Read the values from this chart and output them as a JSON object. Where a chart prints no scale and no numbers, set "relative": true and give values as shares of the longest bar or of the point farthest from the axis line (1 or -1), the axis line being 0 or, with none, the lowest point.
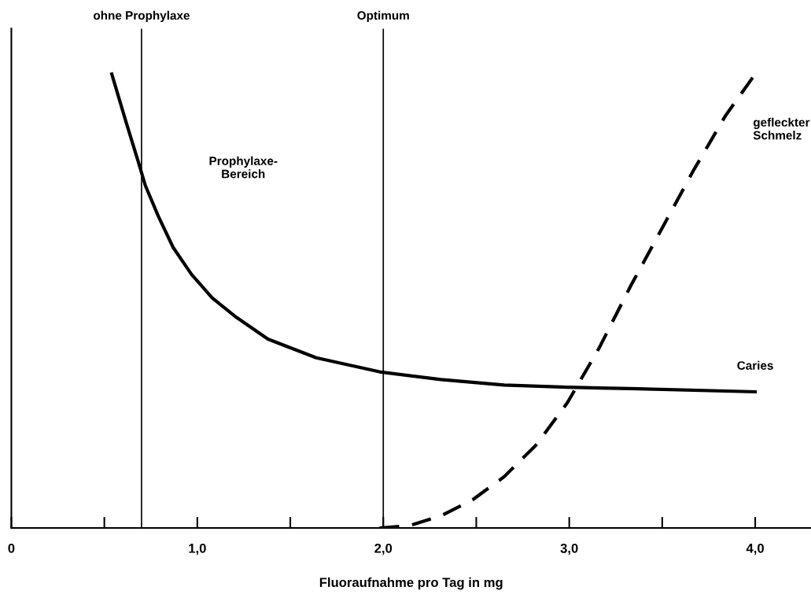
{
  "chart_data": {
    "type": "line",
    "relative": true,
    "xlabel": "Fluoraufnahme pro Tag in mg",
    "xlim": [
      0,
      4.3
    ],
    "xticks": [
      {
        "value": 0,
        "label": "0"
      },
      {
        "value": 0.5,
        "label": null
      },
      {
        "value": 1,
        "label": "1,0"
      },
      {
        "value": 1.5,
        "label": null
      },
      {
        "value": 2,
        "label": "2,0"
      },
      {
        "value": 2.5,
        "label": null
      },
      {
        "value": 3,
        "label": "3,0"
      },
      {
        "value": 3.5,
        "label": null
      },
      {
        "value": 4,
        "label": "4,0"
      }
    ],
    "series": [
      {
        "name": "Caries",
        "color": "#000000",
        "line_style": "solid",
        "x": [
          0.54,
          0.62,
          0.68,
          0.72,
          0.79,
          0.87,
          0.97,
          1.08,
          1.21,
          1.38,
          1.64,
          1.98,
          2.31,
          2.65,
          2.99,
          3.33,
          4.0
        ],
        "values": [
          1.0,
          0.89,
          0.81,
          0.755,
          0.687,
          0.618,
          0.558,
          0.507,
          0.464,
          0.416,
          0.375,
          0.344,
          0.327,
          0.315,
          0.31,
          0.307,
          0.3
        ]
      },
      {
        "name": "gefleckter\nSchmelz",
        "color": "#000000",
        "line_style": "dashed",
        "x": [
          1.98,
          2.14,
          2.31,
          2.48,
          2.65,
          2.82,
          2.99,
          3.16,
          3.33,
          3.5,
          3.67,
          3.84,
          4.0
        ],
        "values": [
          0,
          0.005,
          0.027,
          0.062,
          0.113,
          0.182,
          0.276,
          0.396,
          0.533,
          0.661,
          0.789,
          0.908,
          1.0
        ]
      }
    ],
    "ref_lines": [
      {
        "axis": "x",
        "value": 0.7,
        "label": "ohne Prophylaxe",
        "color": "#000000"
      },
      {
        "axis": "x",
        "value": 2.0,
        "label": "Optimum",
        "color": "#000000"
      }
    ],
    "annotations": [
      "Prophylaxe-\nBereich"
    ],
    "grid": false,
    "legend": false,
    "marker": "none"
  }
}
